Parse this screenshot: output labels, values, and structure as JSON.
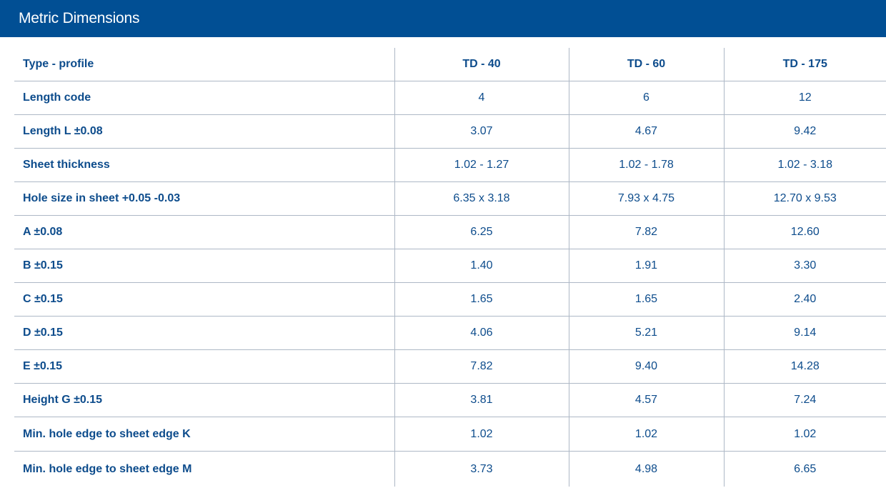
{
  "title": "Metric Dimensions",
  "table": {
    "header": {
      "label": "Type - profile",
      "columns": [
        "TD - 40",
        "TD - 60",
        "TD - 175"
      ]
    },
    "rows": [
      {
        "label": "Length code",
        "values": [
          "4",
          "6",
          "12"
        ]
      },
      {
        "label": "Length L ±0.08",
        "values": [
          "3.07",
          "4.67",
          "9.42"
        ]
      },
      {
        "label": "Sheet thickness",
        "values": [
          "1.02 - 1.27",
          "1.02 - 1.78",
          "1.02 - 3.18"
        ]
      },
      {
        "label": "Hole size in sheet +0.05 -0.03",
        "values": [
          "6.35 x 3.18",
          "7.93 x 4.75",
          "12.70 x 9.53"
        ]
      },
      {
        "label": "A ±0.08",
        "values": [
          "6.25",
          "7.82",
          "12.60"
        ]
      },
      {
        "label": "B ±0.15",
        "values": [
          "1.40",
          "1.91",
          "3.30"
        ]
      },
      {
        "label": "C ±0.15",
        "values": [
          "1.65",
          "1.65",
          "2.40"
        ]
      },
      {
        "label": "D ±0.15",
        "values": [
          "4.06",
          "5.21",
          "9.14"
        ]
      },
      {
        "label": "E ±0.15",
        "values": [
          "7.82",
          "9.40",
          "14.28"
        ]
      },
      {
        "label": "Height G ±0.15",
        "values": [
          "3.81",
          "4.57",
          "7.24"
        ]
      },
      {
        "label": "Min. hole edge to sheet edge K",
        "values": [
          "1.02",
          "1.02",
          "1.02"
        ]
      },
      {
        "label": "Min. hole edge to sheet edge M",
        "values": [
          "3.73",
          "4.98",
          "6.65"
        ]
      }
    ]
  },
  "colors": {
    "title_bar": "#014f94",
    "text": "#0d4c8c",
    "rule": "#aeb8c6"
  }
}
